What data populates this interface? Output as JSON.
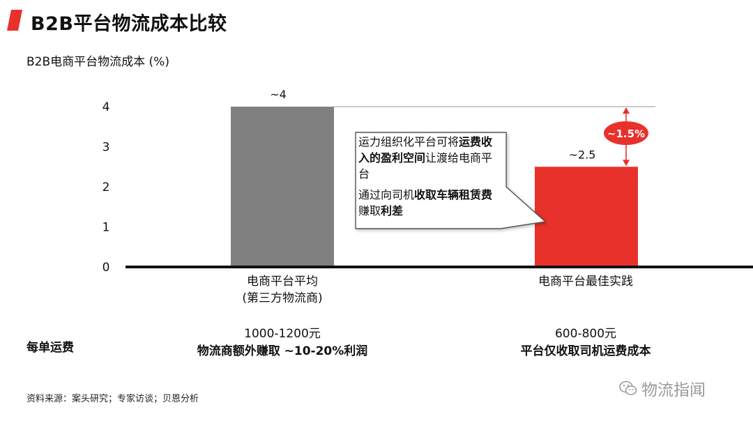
{
  "header": {
    "title": "B2B平台物流成本比较"
  },
  "accent_color": "#e8312b",
  "gray_color": "#808080",
  "chart_data": {
    "type": "bar",
    "ylabel": "B2B电商平台物流成本 (%)",
    "ylim": [
      0,
      4
    ],
    "yticks": [
      "0",
      "1",
      "2",
      "3",
      "4"
    ],
    "categories": [
      "电商平台平均",
      "电商平台最佳实践"
    ],
    "category_sublabels": [
      "(第三方物流商)",
      ""
    ],
    "values": [
      4,
      2.5
    ],
    "data_labels": [
      "~4",
      "~2.5"
    ],
    "colors": [
      "#808080",
      "#e8312b"
    ],
    "difference_label": "~1.5%"
  },
  "per_order": {
    "label": "每单运费",
    "items": [
      {
        "range": "1000-1200元",
        "note": "物流商额外赚取 ~10-20%利润"
      },
      {
        "range": "600-800元",
        "note": "平台仅收取司机运费成本"
      }
    ]
  },
  "callout": {
    "line1_a": "运力组织化平台可将",
    "line1_b": "运费收入的盈利空间",
    "line1_c": "让渡给电商平台",
    "line2_a": "通过向司机",
    "line2_b": "收取车辆租赁费",
    "line2_c": "赚取",
    "line2_d": "利差"
  },
  "source": "资料来源：案头研究；专家访谈；贝恩分析",
  "watermark": {
    "icon": "wechat-icon",
    "text": "物流指闻"
  }
}
